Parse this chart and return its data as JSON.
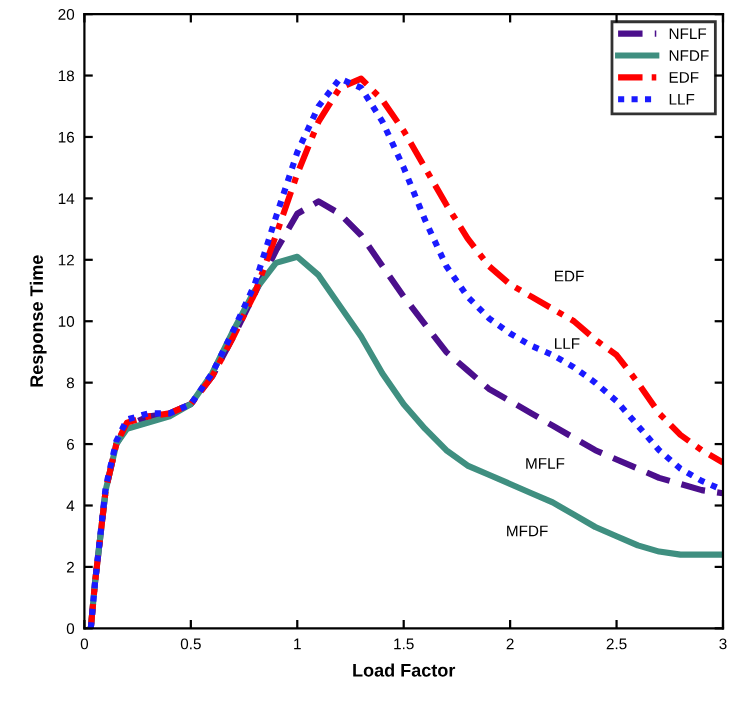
{
  "chart_data": {
    "type": "line",
    "xlabel": "Load Factor",
    "ylabel": "Response Time",
    "x": [
      0.03,
      0.05,
      0.1,
      0.15,
      0.2,
      0.3,
      0.4,
      0.5,
      0.6,
      0.7,
      0.8,
      0.9,
      1.0,
      1.1,
      1.2,
      1.3,
      1.4,
      1.5,
      1.6,
      1.7,
      1.8,
      1.9,
      2.0,
      2.1,
      2.2,
      2.3,
      2.4,
      2.5,
      2.6,
      2.7,
      2.8,
      2.9,
      3.0
    ],
    "series": [
      {
        "name": "NFLF",
        "color": "#4b0f8c",
        "line_style": "dashed",
        "values": [
          0,
          1.5,
          4.5,
          6.0,
          6.6,
          6.9,
          7.0,
          7.3,
          8.2,
          9.5,
          10.9,
          12.3,
          13.5,
          13.9,
          13.5,
          12.8,
          11.8,
          10.8,
          9.9,
          9.0,
          8.4,
          7.8,
          7.4,
          7.0,
          6.6,
          6.2,
          5.8,
          5.5,
          5.2,
          4.9,
          4.7,
          4.5,
          4.4
        ]
      },
      {
        "name": "NFDF",
        "color": "#3f8f80",
        "line_style": "solid",
        "values": [
          0,
          1.5,
          4.5,
          6.0,
          6.5,
          6.7,
          6.9,
          7.3,
          8.3,
          9.7,
          11.0,
          11.9,
          12.1,
          11.5,
          10.5,
          9.5,
          8.3,
          7.3,
          6.5,
          5.8,
          5.3,
          5.0,
          4.7,
          4.4,
          4.1,
          3.7,
          3.3,
          3.0,
          2.7,
          2.5,
          2.4,
          2.4,
          2.4
        ]
      },
      {
        "name": "EDF",
        "color": "#ff0000",
        "line_style": "dashdot",
        "values": [
          0,
          1.5,
          4.5,
          6.0,
          6.7,
          6.9,
          7.0,
          7.3,
          8.2,
          9.5,
          10.9,
          12.8,
          14.8,
          16.5,
          17.6,
          17.9,
          17.2,
          16.2,
          15.0,
          13.8,
          12.7,
          11.8,
          11.2,
          10.8,
          10.4,
          10.0,
          9.4,
          8.9,
          8.0,
          7.0,
          6.3,
          5.8,
          5.4
        ]
      },
      {
        "name": "LLF",
        "color": "#1a1aff",
        "line_style": "dotted",
        "values": [
          0,
          1.5,
          4.6,
          6.1,
          6.8,
          7.0,
          7.0,
          7.3,
          8.3,
          9.7,
          11.2,
          13.4,
          15.5,
          17.0,
          17.9,
          17.6,
          16.5,
          15.0,
          13.3,
          11.8,
          10.8,
          10.1,
          9.6,
          9.2,
          8.9,
          8.5,
          8.0,
          7.4,
          6.6,
          5.8,
          5.2,
          4.8,
          4.5
        ]
      }
    ],
    "annotations": [
      "EDF",
      "LLF",
      "MFLF",
      "MFDF"
    ],
    "xlim": [
      0,
      3
    ],
    "ylim": [
      0,
      20
    ],
    "xticks": [
      0,
      0.5,
      1,
      1.5,
      2,
      2.5,
      3
    ],
    "yticks": [
      0,
      2,
      4,
      6,
      8,
      10,
      12,
      14,
      16,
      18,
      20
    ],
    "grid": false,
    "legend": "top right"
  }
}
